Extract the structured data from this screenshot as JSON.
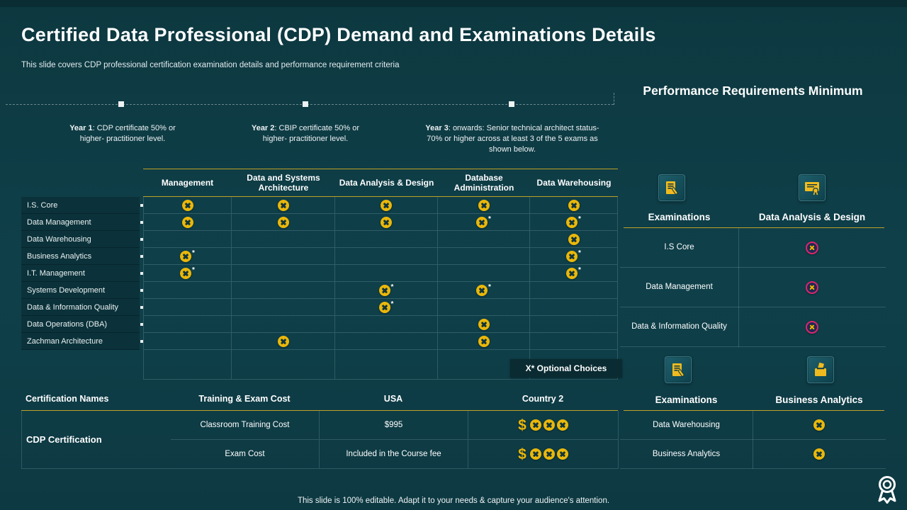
{
  "title": "Certified Data Professional (CDP) Demand and Examinations Details",
  "subtitle": "This slide covers CDP professional certification examination details and performance requirement criteria",
  "performance_header": "Performance Requirements Minimum",
  "timeline": [
    {
      "label": "Year 1",
      "text": "CDP certificate 50% or higher- practitioner level."
    },
    {
      "label": "Year 2",
      "text": "CBIP certificate 50% or higher- practitioner level."
    },
    {
      "label": "Year 3",
      "text": "onwards: Senior technical architect status-70% or higher across at least 3 of the 5 exams as shown below."
    }
  ],
  "matrix": {
    "columns": [
      "Management",
      "Data and Systems Architecture",
      "Data Analysis & Design",
      "Database Administration",
      "Data Warehousing"
    ],
    "rows": [
      {
        "label": "I.S. Core",
        "cells": [
          "x",
          "x",
          "x",
          "x",
          "x"
        ]
      },
      {
        "label": "Data Management",
        "cells": [
          "x",
          "x",
          "x",
          "x*",
          "x*"
        ]
      },
      {
        "label": "Data Warehousing",
        "cells": [
          "",
          "",
          "",
          "",
          "x"
        ]
      },
      {
        "label": "Business Analytics",
        "cells": [
          "x*",
          "",
          "",
          "",
          "x*"
        ]
      },
      {
        "label": "I.T. Management",
        "cells": [
          "x*",
          "",
          "",
          "",
          "x*"
        ]
      },
      {
        "label": "Systems Development",
        "cells": [
          "",
          "",
          "x*",
          "x*",
          ""
        ]
      },
      {
        "label": "Data & Information Quality",
        "cells": [
          "",
          "",
          "x*",
          "",
          ""
        ]
      },
      {
        "label": "Data Operations (DBA)",
        "cells": [
          "",
          "",
          "",
          "x",
          ""
        ]
      },
      {
        "label": "Zachman Architecture",
        "cells": [
          "",
          "x",
          "",
          "x",
          ""
        ]
      }
    ],
    "note": "X* Optional Choices"
  },
  "cost_table": {
    "headers": [
      "Certification Names",
      "Training & Exam Cost",
      "USA",
      "Country 2"
    ],
    "group": "CDP Certification",
    "rows": [
      {
        "item": "Classroom Training Cost",
        "usa": "$995"
      },
      {
        "item": "Exam Cost",
        "usa": "Included in the Course fee"
      }
    ],
    "country2_marks": {
      "symbol": "$",
      "count": 3
    }
  },
  "panels": [
    {
      "col1_header": "Examinations",
      "col2_header": "Data Analysis & Design",
      "rows": [
        "I.S Core",
        "Data Management",
        "Data & Information Quality"
      ],
      "mark_style": "navy"
    },
    {
      "col1_header": "Examinations",
      "col2_header": "Business Analytics",
      "rows": [
        "Data Warehousing",
        "Business Analytics"
      ],
      "mark_style": "yellow"
    }
  ],
  "icons": {
    "panel1": [
      "exam-paper-icon",
      "certificate-seal-icon"
    ],
    "panel2": [
      "exam-paper-icon",
      "ballot-hand-icon"
    ],
    "bottom_right": "award-ribbon-icon"
  },
  "colors": {
    "background": "#0e3b43",
    "accent_yellow": "#eab70a",
    "gold_line": "#bfa026",
    "magenta_ring": "#e0256f",
    "navy_fill": "#202a52"
  },
  "footer": "This slide is 100% editable. Adapt it to your needs & capture your audience's attention."
}
